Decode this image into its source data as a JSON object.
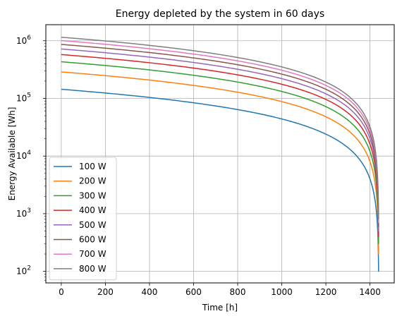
{
  "chart_data": {
    "type": "line",
    "title": "Energy depleted by the system in 60 days",
    "xlabel": "Time [h]",
    "ylabel": "Energy Available [Wh]",
    "xlim": [
      -70,
      1510
    ],
    "ylim": [
      63,
      1900000
    ],
    "yscale": "log",
    "grid": true,
    "legend_position": "lower-left",
    "x_ticks": [
      0,
      200,
      400,
      600,
      800,
      1000,
      1200,
      1400
    ],
    "x_tick_labels": [
      "0",
      "200",
      "400",
      "600",
      "800",
      "1000",
      "1200",
      "1400"
    ],
    "y_ticks": [
      100,
      1000,
      10000,
      100000,
      1000000
    ],
    "y_tick_labels": [
      "10",
      "10",
      "10",
      "10",
      "10"
    ],
    "y_tick_exponents": [
      "2",
      "3",
      "4",
      "5",
      "6"
    ],
    "x_end": 1440,
    "series": [
      {
        "name": "100 W",
        "color": "#1f77b4",
        "start": 144000,
        "end": 100
      },
      {
        "name": "200 W",
        "color": "#ff7f0e",
        "start": 288000,
        "end": 200
      },
      {
        "name": "300 W",
        "color": "#2ca02c",
        "start": 432000,
        "end": 300
      },
      {
        "name": "400 W",
        "color": "#d62728",
        "start": 576000,
        "end": 400
      },
      {
        "name": "500 W",
        "color": "#9467bd",
        "start": 720000,
        "end": 500
      },
      {
        "name": "600 W",
        "color": "#8c564b",
        "start": 864000,
        "end": 600
      },
      {
        "name": "700 W",
        "color": "#e377c2",
        "start": 1008000,
        "end": 700
      },
      {
        "name": "800 W",
        "color": "#7f7f7f",
        "start": 1152000,
        "end": 800
      }
    ]
  }
}
